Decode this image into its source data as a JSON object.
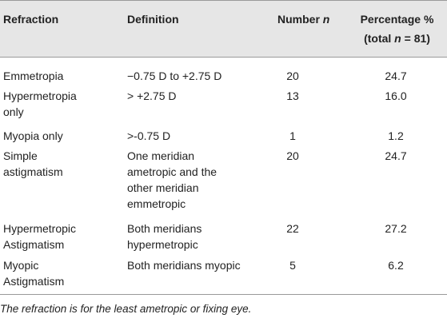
{
  "table": {
    "headers": {
      "refraction": "Refraction",
      "definition": "Definition",
      "number": "Number",
      "number_italic": "n",
      "percentage_line1": "Percentage %",
      "percentage_line2_pre": "(total ",
      "percentage_line2_italic": "n",
      "percentage_line2_post": " = 81)"
    },
    "rows": [
      {
        "refraction": [
          "Emmetropia"
        ],
        "definition": [
          "−0.75 D to +2.75 D"
        ],
        "number": "20",
        "percentage": "24.7"
      },
      {
        "refraction": [
          "Hypermetropia",
          "only"
        ],
        "definition": [
          "> +2.75 D"
        ],
        "number": "13",
        "percentage": "16.0"
      },
      {
        "refraction": [
          "Myopia only"
        ],
        "definition": [
          ">-0.75 D"
        ],
        "number": "1",
        "percentage": "1.2"
      },
      {
        "refraction": [
          "Simple",
          "astigmatism"
        ],
        "definition": [
          "One meridian",
          "ametropic and the",
          "other meridian",
          "emmetropic"
        ],
        "number": "20",
        "percentage": "24.7"
      },
      {
        "refraction": [
          "Hypermetropic",
          "Astigmatism"
        ],
        "definition": [
          "Both meridians",
          "hypermetropic"
        ],
        "number": "22",
        "percentage": "27.2"
      },
      {
        "refraction": [
          "Myopic",
          "Astigmatism"
        ],
        "definition": [
          "Both meridians myopic"
        ],
        "number": "5",
        "percentage": "6.2"
      }
    ]
  },
  "footnote": "The refraction is for the least ametropic or fixing eye."
}
